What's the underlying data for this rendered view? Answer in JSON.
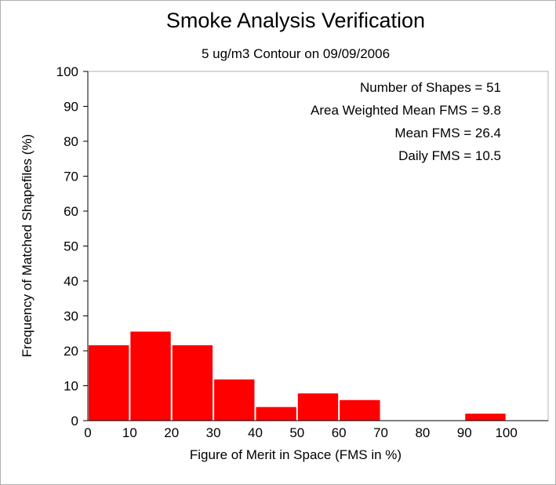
{
  "chart_data": {
    "type": "bar",
    "title": "Smoke Analysis Verification",
    "subtitle": "5 ug/m3 Contour on 09/09/2006",
    "xlabel": "Figure of Merit in Space (FMS in %)",
    "ylabel": "Frequency of Matched Shapefiles (%)",
    "xlim": [
      0,
      110
    ],
    "ylim": [
      0,
      100
    ],
    "xticks": [
      "0",
      "10",
      "20",
      "30",
      "40",
      "50",
      "60",
      "70",
      "80",
      "90",
      "100"
    ],
    "yticks": [
      "0",
      "10",
      "20",
      "30",
      "40",
      "50",
      "60",
      "70",
      "80",
      "90",
      "100"
    ],
    "bins": [
      {
        "from": 0,
        "to": 10,
        "value": 21.6
      },
      {
        "from": 10,
        "to": 20,
        "value": 25.5
      },
      {
        "from": 20,
        "to": 30,
        "value": 21.6
      },
      {
        "from": 30,
        "to": 40,
        "value": 11.8
      },
      {
        "from": 40,
        "to": 50,
        "value": 3.9
      },
      {
        "from": 50,
        "to": 60,
        "value": 7.8
      },
      {
        "from": 60,
        "to": 70,
        "value": 5.9
      },
      {
        "from": 70,
        "to": 80,
        "value": 0
      },
      {
        "from": 80,
        "to": 90,
        "value": 0
      },
      {
        "from": 90,
        "to": 100,
        "value": 2.0
      },
      {
        "from": 100,
        "to": 110,
        "value": 0
      }
    ],
    "annotations": [
      "Number of Shapes = 51",
      "Area Weighted Mean FMS = 9.8",
      "Mean FMS = 26.4",
      "Daily FMS = 10.5"
    ],
    "grid": false,
    "bar_color": "#ff0000"
  }
}
